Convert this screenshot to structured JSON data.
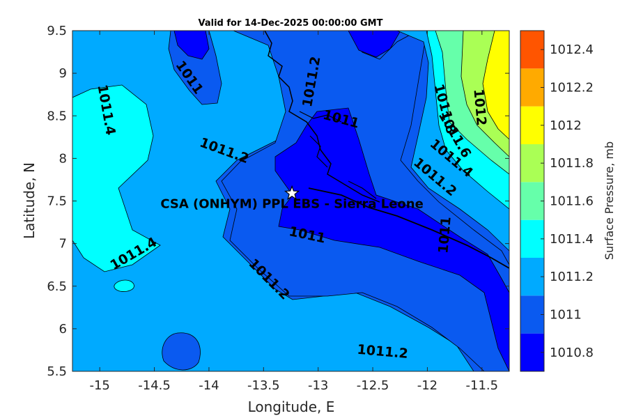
{
  "title": "Valid for 14-Dec-2025 00:00:00 GMT",
  "xlabel": "Longitude, E",
  "ylabel": "Latitude, N",
  "x_ticks": [
    "-15",
    "-14.5",
    "-14",
    "-13.5",
    "-13",
    "-12.5",
    "-12",
    "-11.5"
  ],
  "y_ticks": [
    "9.5",
    "9",
    "8.5",
    "8",
    "7.5",
    "7",
    "6.5",
    "6",
    "5.5"
  ],
  "colorbar": {
    "label": "Surface Pressure, mb",
    "ticks": [
      "1012.4",
      "1012.2",
      "1012",
      "1011.8",
      "1011.6",
      "1011.4",
      "1011.2",
      "1011",
      "1010.8"
    ],
    "levels": [
      {
        "value": 1010.8,
        "color": "#0000ff"
      },
      {
        "value": 1011.0,
        "color": "#0a5af0"
      },
      {
        "value": 1011.2,
        "color": "#00aaff"
      },
      {
        "value": 1011.4,
        "color": "#00ffff"
      },
      {
        "value": 1011.6,
        "color": "#66ffaa"
      },
      {
        "value": 1011.8,
        "color": "#aaff55"
      },
      {
        "value": 1012.0,
        "color": "#ffff00"
      },
      {
        "value": 1012.2,
        "color": "#ffaa00"
      },
      {
        "value": 1012.4,
        "color": "#ff5500"
      }
    ]
  },
  "contour_labels": [
    {
      "text": "1011",
      "lon": -14.18,
      "lat": 8.95,
      "rot": 55
    },
    {
      "text": "1011.4",
      "lon": -14.94,
      "lat": 8.57,
      "rot": 80
    },
    {
      "text": "1011.2",
      "lon": -13.86,
      "lat": 8.09,
      "rot": 20
    },
    {
      "text": "1011.2",
      "lon": -13.06,
      "lat": 8.9,
      "rot": -80
    },
    {
      "text": "1011",
      "lon": -12.79,
      "lat": 8.46,
      "rot": 15
    },
    {
      "text": "1011.8",
      "lon": -11.84,
      "lat": 8.58,
      "rot": 75
    },
    {
      "text": "1012",
      "lon": -11.52,
      "lat": 8.6,
      "rot": 85
    },
    {
      "text": "1011.6",
      "lon": -11.75,
      "lat": 8.28,
      "rot": 60
    },
    {
      "text": "1011.4",
      "lon": -11.78,
      "lat": 8.0,
      "rot": 40
    },
    {
      "text": "1011.2",
      "lon": -11.93,
      "lat": 7.78,
      "rot": 40
    },
    {
      "text": "1011",
      "lon": -11.84,
      "lat": 7.1,
      "rot": -85
    },
    {
      "text": "1011",
      "lon": -13.1,
      "lat": 7.1,
      "rot": 12
    },
    {
      "text": "1011.4",
      "lon": -14.69,
      "lat": 6.88,
      "rot": -30
    },
    {
      "text": "1011.2",
      "lon": -13.45,
      "lat": 6.58,
      "rot": 45
    },
    {
      "text": "1011.2",
      "lon": -12.41,
      "lat": 5.73,
      "rot": 5
    }
  ],
  "site": {
    "name": "CSA (ONHYM) PPL EBS  - Sierra Leone",
    "lon": -13.24,
    "lat": 7.59
  },
  "map_extent": {
    "lon_min": -15.25,
    "lon_max": -11.25,
    "lat_min": 5.5,
    "lat_max": 9.5
  }
}
